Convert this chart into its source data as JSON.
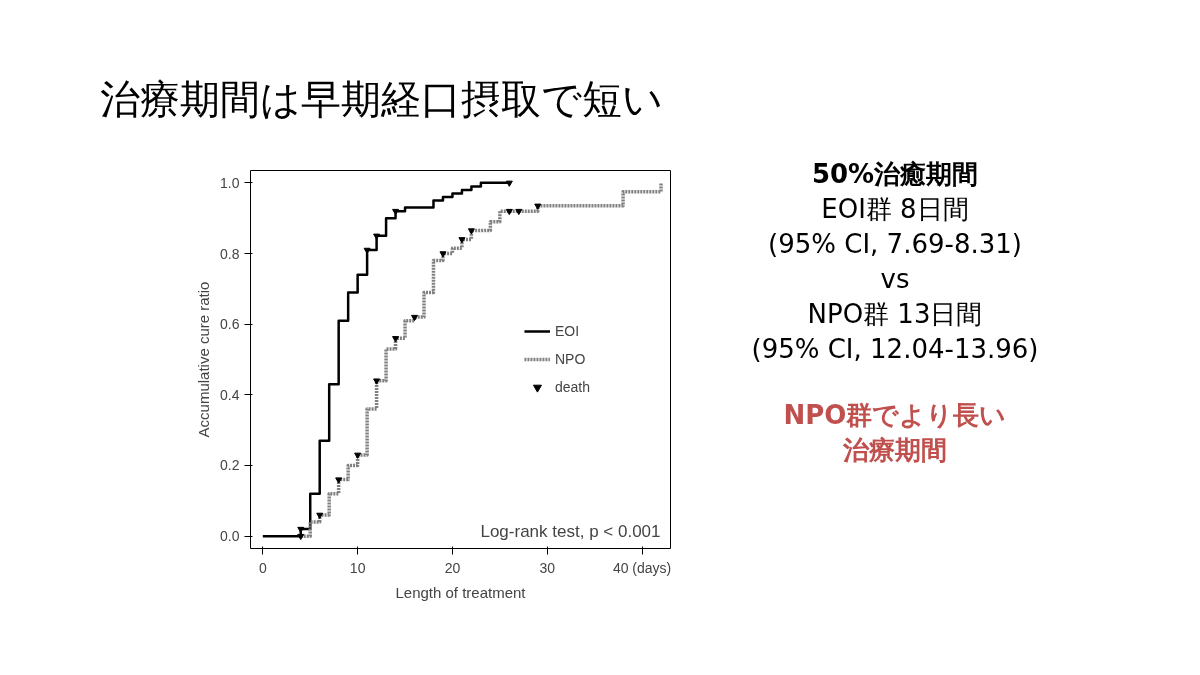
{
  "chart_data": {
    "type": "step",
    "title": "治療期間は早期経口摂取で短い",
    "xlabel": "Length of treatment",
    "ylabel": "Accumulative cure ratio",
    "xlim": [
      -1.3,
      43
    ],
    "ylim": [
      -0.035,
      1.035
    ],
    "xticks": [
      0,
      10,
      20,
      30,
      {
        "value": 40,
        "label": "40 (days)"
      }
    ],
    "yticks": [
      {
        "value": 0,
        "label": "0.0"
      },
      {
        "value": 0.2,
        "label": "0.2"
      },
      {
        "value": 0.4,
        "label": "0.4"
      },
      {
        "value": 0.6,
        "label": "0.6"
      },
      {
        "value": 0.8,
        "label": "0.8"
      },
      {
        "value": 1,
        "label": "1.0"
      }
    ],
    "grid": false,
    "legend": "right",
    "series": [
      {
        "name": "EOI",
        "color": "#000000",
        "line_style": "solid",
        "x": [
          0,
          4,
          5,
          6,
          7,
          8,
          9,
          10,
          11,
          12,
          13,
          14,
          15,
          18,
          19,
          20,
          21,
          22,
          23,
          26
        ],
        "values": [
          0,
          0.02,
          0.12,
          0.27,
          0.43,
          0.61,
          0.69,
          0.74,
          0.81,
          0.85,
          0.9,
          0.92,
          0.93,
          0.95,
          0.96,
          0.97,
          0.98,
          0.99,
          1.0,
          1.0
        ]
      },
      {
        "name": "NPO",
        "color": "#808080",
        "line_style": "dotted",
        "x": [
          4,
          5,
          6,
          7,
          8,
          9,
          10,
          11,
          12,
          13,
          14,
          15,
          16,
          17,
          18,
          19,
          20,
          21,
          22,
          24,
          25,
          29,
          38,
          42
        ],
        "values": [
          0,
          0.04,
          0.06,
          0.12,
          0.16,
          0.2,
          0.23,
          0.36,
          0.44,
          0.53,
          0.56,
          0.61,
          0.62,
          0.69,
          0.78,
          0.8,
          0.815,
          0.84,
          0.865,
          0.89,
          0.92,
          0.935,
          0.975,
          1.0
        ]
      },
      {
        "name": "death",
        "type": "scatter",
        "marker": "triangle",
        "color": "#000000",
        "x": [
          4,
          11,
          12,
          14,
          26,
          4,
          6,
          8,
          10,
          12,
          14,
          16,
          19,
          21,
          22,
          26,
          27,
          29
        ],
        "values": [
          0.02,
          0.81,
          0.85,
          0.92,
          1.0,
          0,
          0.06,
          0.16,
          0.23,
          0.44,
          0.56,
          0.62,
          0.8,
          0.84,
          0.865,
          0.92,
          0.92,
          0.935
        ]
      }
    ],
    "annotations": [
      "Log-rank test, p < 0.001",
      "50%治癒期間",
      "EOI群 8日間",
      "(95% CI, 7.69-8.31)",
      "vs",
      "NPO群 13日間",
      "(95% CI, 12.04-13.96)",
      "NPO群でより長い",
      "治療期間"
    ]
  }
}
